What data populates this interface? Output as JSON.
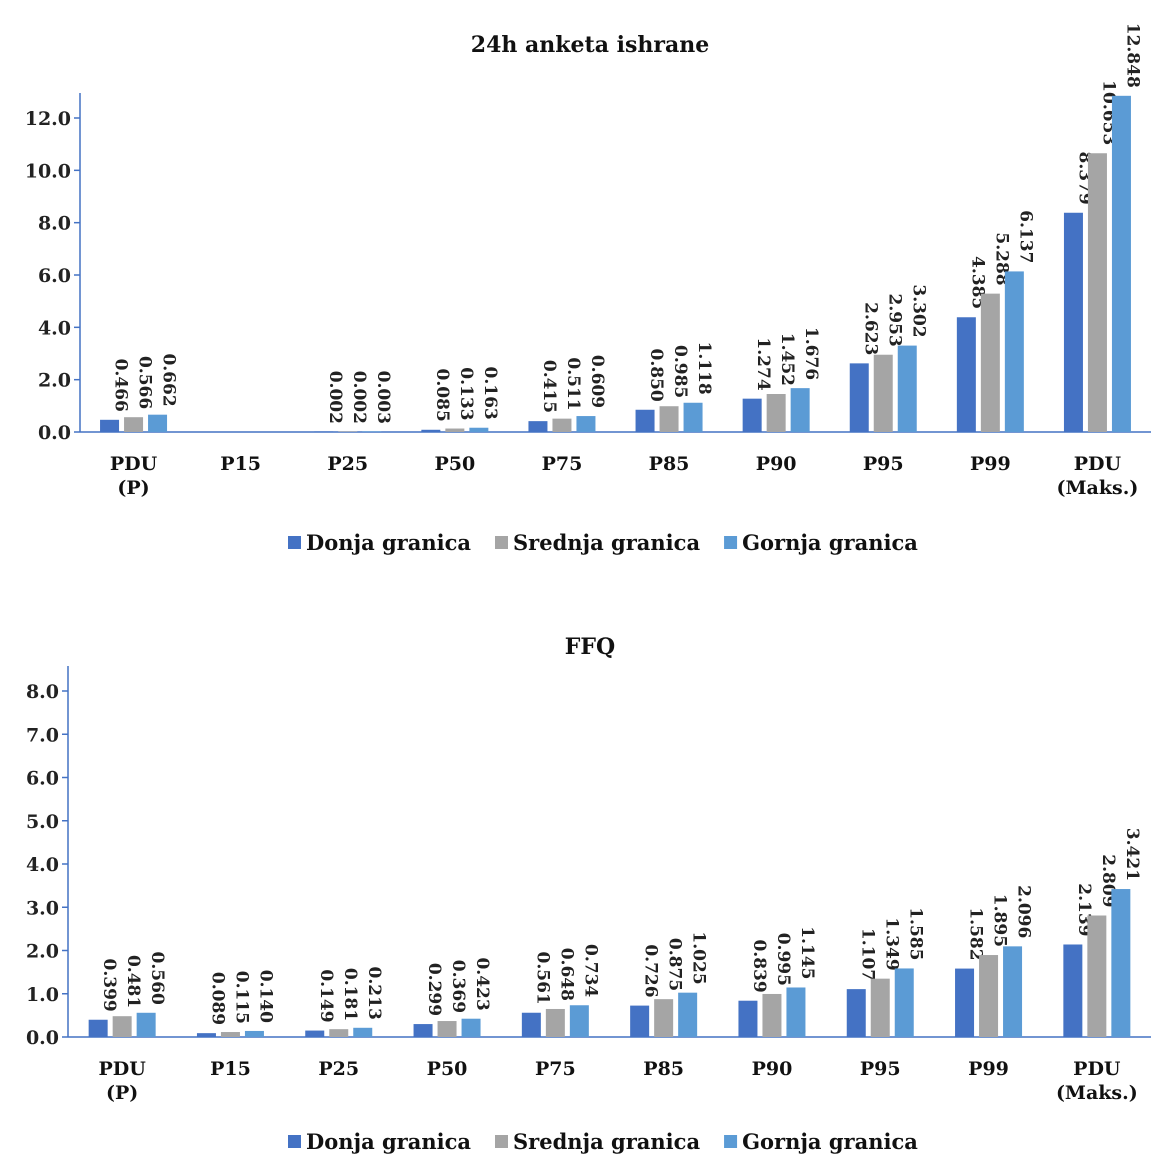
{
  "chart_data": [
    {
      "type": "bar",
      "title": "24h anketa ishrane",
      "categories": [
        [
          "PDU",
          "(P)"
        ],
        [
          "P15"
        ],
        [
          "P25"
        ],
        [
          "P50"
        ],
        [
          "P75"
        ],
        [
          "P85"
        ],
        [
          "P90"
        ],
        [
          "P95"
        ],
        [
          "P99"
        ],
        [
          "PDU",
          "(Maks.)"
        ]
      ],
      "series": [
        {
          "name": "Donja granica",
          "color": "#4472C4",
          "values": [
            0.466,
            null,
            0.002,
            0.085,
            0.415,
            0.85,
            1.274,
            2.623,
            4.385,
            8.379
          ],
          "labels": [
            "0.466",
            "",
            "0.002",
            "0.085",
            "0.415",
            "0.850",
            "1.274",
            "2.623",
            "4.385",
            "8.379"
          ]
        },
        {
          "name": "Srednja granica",
          "color": "#A5A5A5",
          "values": [
            0.566,
            null,
            0.002,
            0.133,
            0.511,
            0.985,
            1.452,
            2.953,
            5.288,
            10.653
          ],
          "labels": [
            "0.566",
            "",
            "0.002",
            "0.133",
            "0.511",
            "0.985",
            "1.452",
            "2.953",
            "5.288",
            "10.653"
          ]
        },
        {
          "name": "Gornja granica",
          "color": "#5B9BD5",
          "values": [
            0.662,
            null,
            0.003,
            0.163,
            0.609,
            1.118,
            1.676,
            3.302,
            6.137,
            12.848
          ],
          "labels": [
            "0.662",
            "",
            "0.003",
            "0.163",
            "0.609",
            "1.118",
            "1.676",
            "3.302",
            "6.137",
            "12.848"
          ]
        }
      ],
      "ylim": [
        0,
        12.0
      ],
      "yticks": [
        "0.0",
        "2.0",
        "4.0",
        "6.0",
        "8.0",
        "10.0",
        "12.0"
      ],
      "grid": false,
      "legend_position": "bottom"
    },
    {
      "type": "bar",
      "title": "FFQ",
      "categories": [
        [
          "PDU",
          "(P)"
        ],
        [
          "P15"
        ],
        [
          "P25"
        ],
        [
          "P50"
        ],
        [
          "P75"
        ],
        [
          "P85"
        ],
        [
          "P90"
        ],
        [
          "P95"
        ],
        [
          "P99"
        ],
        [
          "PDU",
          "(Maks.)"
        ]
      ],
      "series": [
        {
          "name": "Donja granica",
          "color": "#4472C4",
          "values": [
            0.399,
            0.089,
            0.149,
            0.299,
            0.561,
            0.726,
            0.839,
            1.107,
            1.582,
            2.139
          ],
          "labels": [
            "0.399",
            "0.089",
            "0.149",
            "0.299",
            "0.561",
            "0.726",
            "0.839",
            "1.107",
            "1.582",
            "2.139"
          ]
        },
        {
          "name": "Srednja granica",
          "color": "#A5A5A5",
          "values": [
            0.481,
            0.115,
            0.181,
            0.369,
            0.648,
            0.875,
            0.995,
            1.349,
            1.895,
            2.809
          ],
          "labels": [
            "0.481",
            "0.115",
            "0.181",
            "0.369",
            "0.648",
            "0.875",
            "0.995",
            "1.349",
            "1.895",
            "2.809"
          ]
        },
        {
          "name": "Gornja granica",
          "color": "#5B9BD5",
          "values": [
            0.56,
            0.14,
            0.213,
            0.423,
            0.734,
            1.025,
            1.145,
            1.585,
            2.096,
            3.421
          ],
          "labels": [
            "0.560",
            "0.140",
            "0.213",
            "0.423",
            "0.734",
            "1.025",
            "1.145",
            "1.585",
            "2.096",
            "3.421"
          ]
        }
      ],
      "ylim": [
        0,
        8.0
      ],
      "yticks": [
        "0.0",
        "1.0",
        "2.0",
        "3.0",
        "4.0",
        "5.0",
        "6.0",
        "7.0",
        "8.0"
      ],
      "grid": false,
      "legend_position": "bottom"
    }
  ]
}
